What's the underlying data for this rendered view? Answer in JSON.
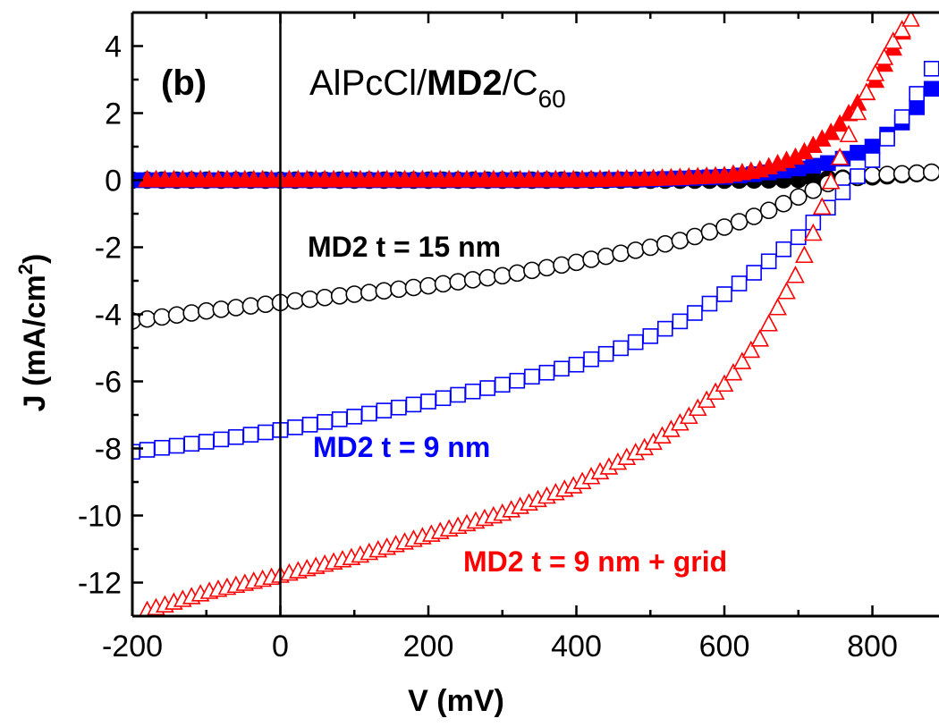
{
  "chart_data": {
    "type": "scatter",
    "panel_label": "(b)",
    "title_parts": {
      "a": "AlPcCl/",
      "b": "MD2",
      "c": "/C",
      "sub": "60"
    },
    "xlabel": "V (mV)",
    "ylabel": {
      "main": "J (mA/cm",
      "sup": "2",
      "close": ")"
    },
    "xlim": [
      -200,
      890
    ],
    "ylim": [
      -13,
      5
    ],
    "xticks": [
      -200,
      0,
      200,
      400,
      600,
      800
    ],
    "yticks": [
      -12,
      -10,
      -8,
      -6,
      -4,
      -2,
      0,
      2,
      4
    ],
    "grid": false,
    "vertical_reference_line_x": 0,
    "series": [
      {
        "name": "MD2 t = 15 nm",
        "color": "#000000",
        "marker": "circle",
        "dark": {
          "v": [
            -200,
            0,
            200,
            400,
            500,
            600,
            700,
            750,
            800,
            850,
            890
          ],
          "j": [
            0,
            0,
            0,
            0,
            0,
            0,
            0.02,
            0.05,
            0.1,
            0.18,
            0.25
          ]
        },
        "light": {
          "v": [
            -200,
            -100,
            0,
            100,
            200,
            300,
            400,
            500,
            550,
            600,
            650,
            700,
            750,
            800,
            850,
            890
          ],
          "j": [
            -4.2,
            -3.9,
            -3.65,
            -3.4,
            -3.15,
            -2.85,
            -2.45,
            -2.0,
            -1.75,
            -1.4,
            -1.0,
            -0.5,
            0.0,
            0.15,
            0.2,
            0.25
          ]
        }
      },
      {
        "name": "MD2 t = 9 nm",
        "color": "#0000ff",
        "marker": "square",
        "dark": {
          "v": [
            -200,
            0,
            200,
            400,
            500,
            600,
            650,
            700,
            750,
            800,
            850,
            890
          ],
          "j": [
            0,
            0,
            0,
            0,
            0.02,
            0.1,
            0.2,
            0.35,
            0.55,
            1.0,
            1.9,
            3.0
          ]
        },
        "light": {
          "v": [
            -200,
            -100,
            0,
            100,
            200,
            300,
            400,
            450,
            500,
            550,
            600,
            650,
            700,
            750,
            800,
            850,
            890
          ],
          "j": [
            -8.1,
            -7.8,
            -7.45,
            -7.05,
            -6.6,
            -6.1,
            -5.5,
            -5.1,
            -4.65,
            -4.1,
            -3.4,
            -2.6,
            -1.7,
            -0.6,
            0.6,
            2.2,
            3.7
          ]
        }
      },
      {
        "name": "MD2 t = 9 nm + grid",
        "color": "#ff0000",
        "marker": "triangle",
        "dark": {
          "v": [
            -180,
            0,
            200,
            400,
            500,
            600,
            650,
            700,
            750,
            800,
            850
          ],
          "j": [
            0,
            0,
            0,
            0,
            0.03,
            0.12,
            0.3,
            0.7,
            1.5,
            2.8,
            4.8
          ]
        },
        "light": {
          "v": [
            -180,
            -100,
            0,
            100,
            200,
            300,
            400,
            500,
            550,
            600,
            650,
            700,
            720,
            740,
            760,
            780,
            800,
            830,
            860
          ],
          "j": [
            -12.85,
            -12.3,
            -11.8,
            -11.25,
            -10.6,
            -9.95,
            -9.1,
            -7.9,
            -7.1,
            -6.1,
            -4.7,
            -2.7,
            -1.6,
            -0.3,
            0.9,
            2.0,
            3.0,
            4.2,
            5.0
          ]
        }
      }
    ]
  }
}
